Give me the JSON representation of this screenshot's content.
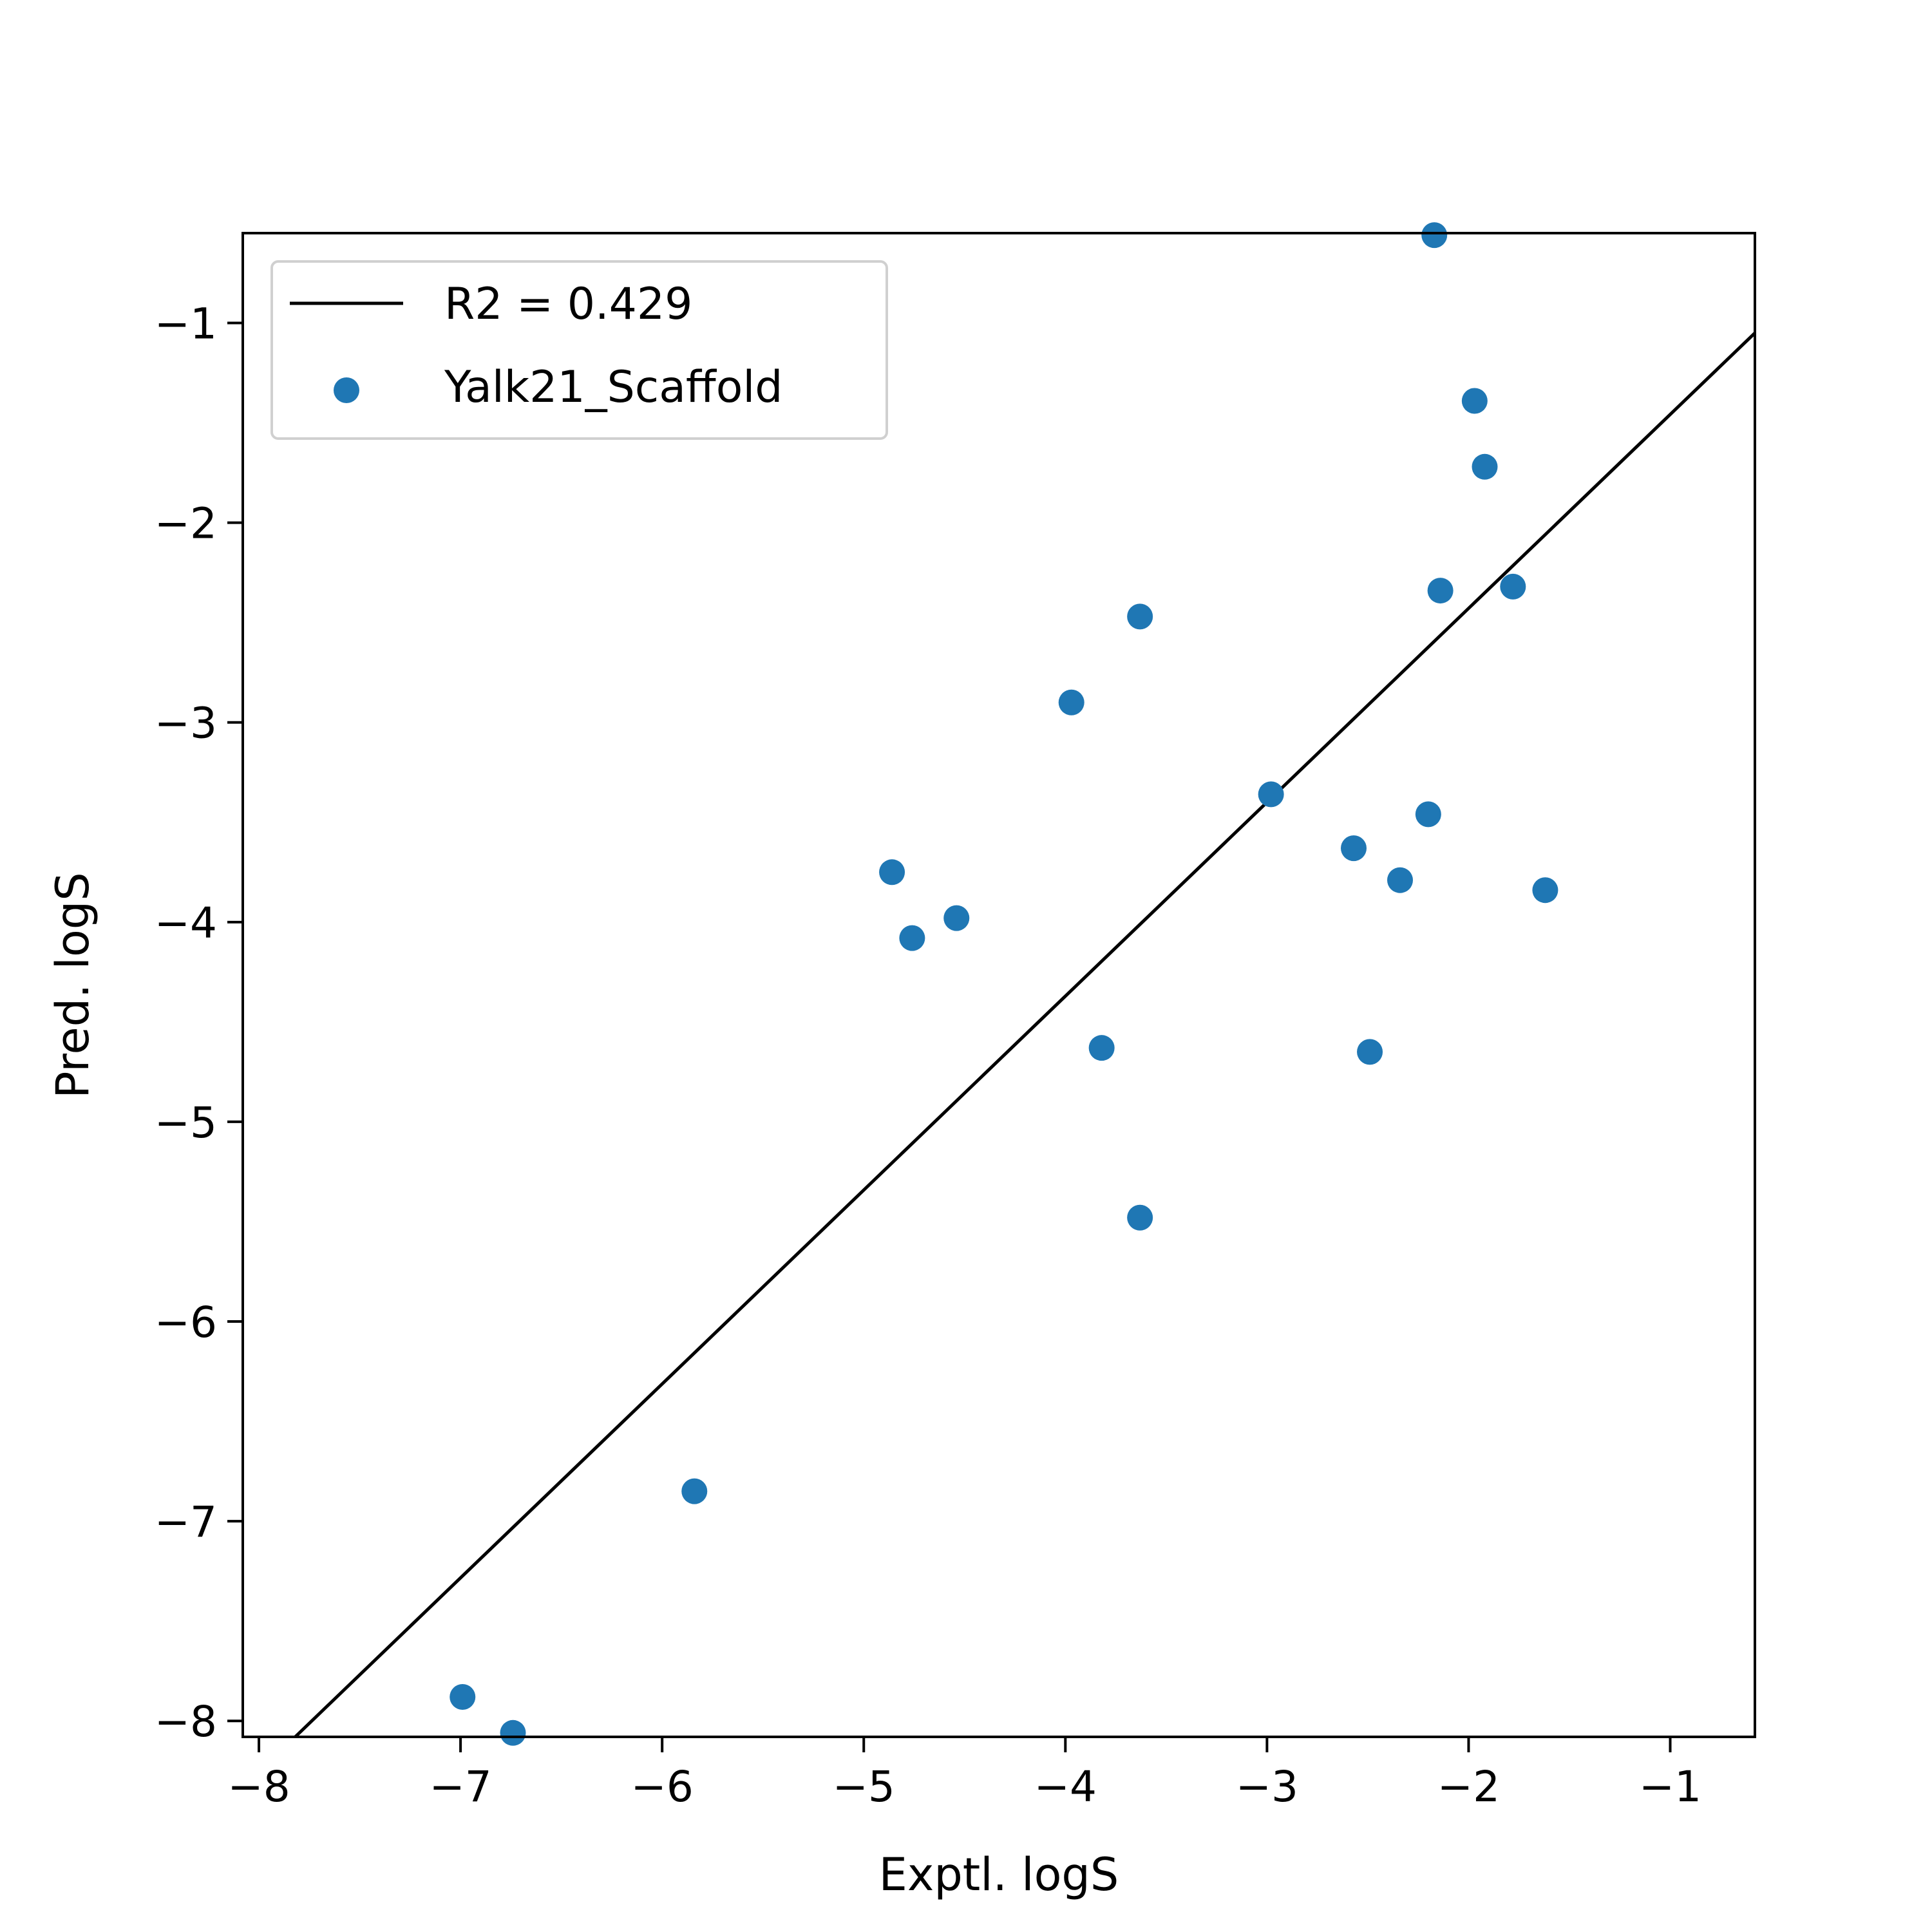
{
  "chart_data": {
    "type": "scatter",
    "title": "",
    "xlabel": "Exptl. logS",
    "ylabel": "Pred. logS",
    "xlim": [
      -8.08,
      -0.58
    ],
    "ylim": [
      -8.08,
      -0.55
    ],
    "xticks": [
      -8,
      -7,
      -6,
      -5,
      -4,
      -3,
      -2,
      -1
    ],
    "yticks": [
      -8,
      -7,
      -6,
      -5,
      -4,
      -3,
      -2,
      -1
    ],
    "xtick_labels": [
      "−8",
      "−7",
      "−6",
      "−5",
      "−4",
      "−3",
      "−2",
      "−1"
    ],
    "ytick_labels": [
      "−8",
      "−7",
      "−6",
      "−5",
      "−4",
      "−3",
      "−2",
      "−1"
    ],
    "grid": false,
    "legend_position": "top-left",
    "series": [
      {
        "name": "Yalk21_Scaffold",
        "kind": "scatter",
        "color": "#1f77b4",
        "x": [
          -2.17,
          -1.97,
          -1.92,
          -2.14,
          -1.78,
          -3.63,
          -3.97,
          -2.98,
          -2.2,
          -2.57,
          -2.34,
          -1.62,
          -4.86,
          -4.54,
          -4.76,
          -3.82,
          -2.49,
          -3.63,
          -5.84,
          -6.99,
          -6.74
        ],
        "y": [
          -0.56,
          -1.39,
          -1.72,
          -2.34,
          -2.32,
          -2.47,
          -2.9,
          -3.36,
          -3.46,
          -3.63,
          -3.79,
          -3.84,
          -3.75,
          -3.98,
          -4.08,
          -4.63,
          -4.65,
          -5.48,
          -6.85,
          -7.88,
          -8.06
        ]
      },
      {
        "name": "R2 = 0.429",
        "kind": "line",
        "color": "#000000",
        "x": [
          -7.82,
          -0.58
        ],
        "y": [
          -8.08,
          -1.05
        ]
      }
    ]
  }
}
